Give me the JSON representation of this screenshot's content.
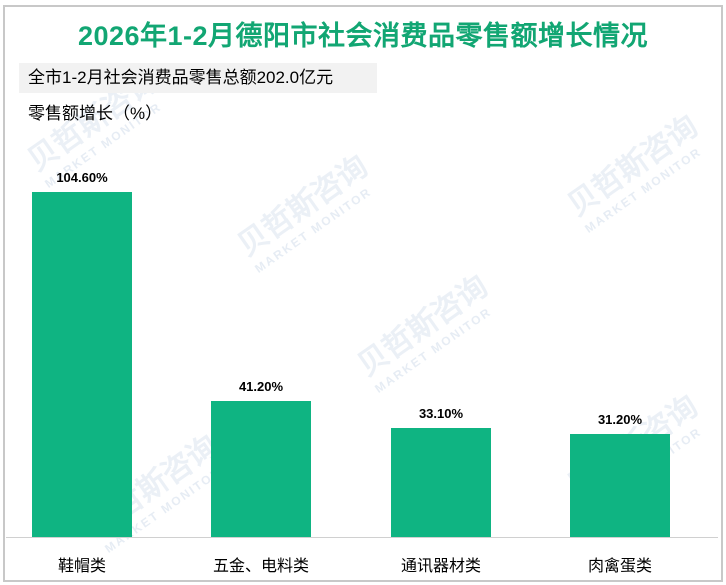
{
  "header": {
    "title": "2026年1-2月德阳市社会消费品零售额增长情况",
    "subtitle": "全市1-2月社会消费品零售总额202.0亿元",
    "y_axis_label": "零售额增长（%）"
  },
  "watermark": {
    "text": "贝哲斯咨询",
    "sub": "MARKET MONITOR"
  },
  "colors": {
    "title": "#12a673",
    "bar": "#0fb482",
    "subtitle_bg": "#f2f2f2"
  },
  "bars": [
    {
      "category": "鞋帽类",
      "label": "104.60%"
    },
    {
      "category": "五金、电料类",
      "label": "41.20%"
    },
    {
      "category": "通讯器材类",
      "label": "33.10%"
    },
    {
      "category": "肉禽蛋类",
      "label": "31.20%"
    }
  ],
  "chart_data": {
    "type": "bar",
    "title": "2026年1-2月德阳市社会消费品零售额增长情况",
    "subtitle": "全市1-2月社会消费品零售总额202.0亿元",
    "categories": [
      "鞋帽类",
      "五金、电料类",
      "通讯器材类",
      "肉禽蛋类"
    ],
    "values": [
      104.6,
      41.2,
      33.1,
      31.2
    ],
    "data_labels": [
      "104.60%",
      "41.20%",
      "33.10%",
      "31.20%"
    ],
    "xlabel": "",
    "ylabel": "零售额增长（%）",
    "ylim": [
      0,
      110
    ],
    "grid": false,
    "legend": "none"
  }
}
